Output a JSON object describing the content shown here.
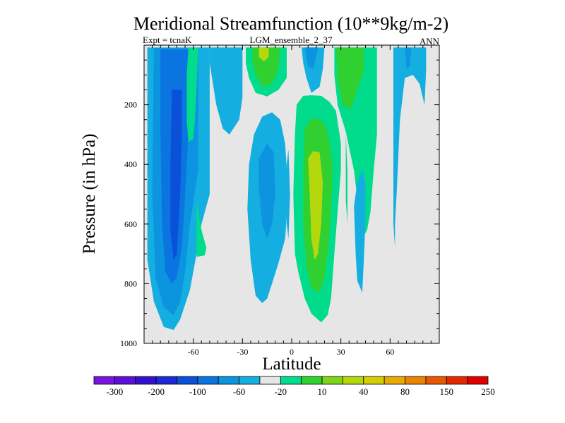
{
  "chart_data": {
    "type": "contour",
    "title": "Meridional Streamfunction (10**9kg/m-2)",
    "left_label": "Expt = tcnaK",
    "center_label": "LGM_ensemble_2_37",
    "right_label": "ANN",
    "xlabel": "Latitude",
    "ylabel": "Pressure (in hPa)",
    "xlim": [
      -90,
      90
    ],
    "ylim": [
      1000,
      0
    ],
    "xticks": [
      -60,
      -30,
      0,
      30,
      60
    ],
    "xtick_labels": [
      "-60",
      "-30",
      "0",
      "30",
      "60"
    ],
    "yticks": [
      200,
      400,
      600,
      800,
      1000
    ],
    "ytick_labels": [
      "200",
      "400",
      "600",
      "800",
      "1000"
    ],
    "background_color": "#e6e6e6",
    "colorbar": {
      "labels": [
        "-300",
        "-200",
        "-100",
        "-60",
        "-20",
        "10",
        "40",
        "80",
        "150",
        "250"
      ],
      "colors": [
        "#7a12e0",
        "#5a10d8",
        "#3210d0",
        "#1d28d6",
        "#0a50d8",
        "#0a74e0",
        "#0c94e0",
        "#14aee0",
        "#e6e6e6",
        "#00dc8c",
        "#30d030",
        "#80d418",
        "#b4d80c",
        "#d4cc04",
        "#e8ac00",
        "#ec8400",
        "#e85800",
        "#e42800",
        "#e00000"
      ]
    },
    "regions": [
      {
        "name": "sh-cell-outer",
        "level": "-20",
        "color": "#14aee0",
        "points": [
          [
            -88,
            8
          ],
          [
            -50,
            8
          ],
          [
            -50,
            500
          ],
          [
            -55,
            600
          ],
          [
            -58,
            700
          ],
          [
            -62,
            820
          ],
          [
            -68,
            920
          ],
          [
            -72,
            955
          ],
          [
            -78,
            945
          ],
          [
            -84,
            860
          ],
          [
            -88,
            720
          ]
        ]
      },
      {
        "name": "sh-cell-mid",
        "level": "-60",
        "color": "#0c94e0",
        "points": [
          [
            -84,
            10
          ],
          [
            -57,
            10
          ],
          [
            -57,
            420
          ],
          [
            -62,
            600
          ],
          [
            -65,
            760
          ],
          [
            -68,
            860
          ],
          [
            -72,
            905
          ],
          [
            -78,
            880
          ],
          [
            -83,
            780
          ],
          [
            -85,
            500
          ]
        ]
      },
      {
        "name": "sh-cell-inner",
        "level": "-100",
        "color": "#0a74e0",
        "points": [
          [
            -80,
            15
          ],
          [
            -62,
            15
          ],
          [
            -63,
            300
          ],
          [
            -65,
            500
          ],
          [
            -67,
            680
          ],
          [
            -70,
            780
          ],
          [
            -73,
            800
          ],
          [
            -77,
            760
          ],
          [
            -79,
            600
          ],
          [
            -80,
            300
          ]
        ]
      },
      {
        "name": "sh-cell-core",
        "level": "-200",
        "color": "#0a50d8",
        "points": [
          [
            -73,
            150
          ],
          [
            -67,
            150
          ],
          [
            -67,
            300
          ],
          [
            -68,
            500
          ],
          [
            -70,
            700
          ],
          [
            -72,
            720
          ],
          [
            -74,
            620
          ],
          [
            -74,
            400
          ]
        ]
      },
      {
        "name": "sh-ferrel-band",
        "level": "10",
        "color": "#00dc8c",
        "points": [
          [
            -63,
            8
          ],
          [
            -57,
            8
          ],
          [
            -58,
            150
          ],
          [
            -59,
            250
          ],
          [
            -60,
            315
          ],
          [
            -63,
            325
          ],
          [
            -64,
            250
          ],
          [
            -64,
            100
          ]
        ]
      },
      {
        "name": "sh-ferrel-low",
        "level": "10",
        "color": "#00dc8c",
        "points": [
          [
            -58,
            525
          ],
          [
            -55,
            620
          ],
          [
            -52,
            680
          ],
          [
            -53,
            705
          ],
          [
            -58,
            710
          ]
        ]
      },
      {
        "name": "sh-upper-cell",
        "level": "-20",
        "color": "#14aee0",
        "points": [
          [
            -50,
            8
          ],
          [
            -30,
            8
          ],
          [
            -30,
            175
          ],
          [
            -32,
            250
          ],
          [
            -38,
            300
          ],
          [
            -42,
            280
          ],
          [
            -46,
            200
          ],
          [
            -50,
            60
          ]
        ]
      },
      {
        "name": "sh-subtropic-band",
        "level": "10",
        "color": "#00dc8c",
        "points": [
          [
            -28,
            8
          ],
          [
            -3,
            8
          ],
          [
            -3,
            110
          ],
          [
            -8,
            150
          ],
          [
            -15,
            172
          ],
          [
            -22,
            160
          ],
          [
            -26,
            110
          ],
          [
            -28,
            60
          ]
        ]
      },
      {
        "name": "sh-subtropic-inner",
        "level": "40",
        "color": "#30d030",
        "points": [
          [
            -24,
            8
          ],
          [
            -7,
            8
          ],
          [
            -8,
            80
          ],
          [
            -12,
            130
          ],
          [
            -18,
            140
          ],
          [
            -22,
            100
          ],
          [
            -24,
            50
          ]
        ]
      },
      {
        "name": "sh-subtropic-core",
        "level": "80",
        "color": "#b4d80c",
        "points": [
          [
            -20,
            8
          ],
          [
            -14,
            8
          ],
          [
            -14,
            40
          ],
          [
            -17,
            55
          ],
          [
            -20,
            40
          ]
        ]
      },
      {
        "name": "sh-hadley",
        "level": "-20",
        "color": "#14aee0",
        "points": [
          [
            -26,
            400
          ],
          [
            -23,
            300
          ],
          [
            -18,
            240
          ],
          [
            -12,
            225
          ],
          [
            -7,
            250
          ],
          [
            -4,
            330
          ],
          [
            -2,
            500
          ],
          [
            -4,
            650
          ],
          [
            -8,
            730
          ],
          [
            -12,
            800
          ],
          [
            -15,
            850
          ],
          [
            -18,
            865
          ],
          [
            -22,
            840
          ],
          [
            -25,
            720
          ],
          [
            -27,
            550
          ]
        ]
      },
      {
        "name": "sh-hadley-inner",
        "level": "-60",
        "color": "#0c94e0",
        "points": [
          [
            -20,
            380
          ],
          [
            -15,
            330
          ],
          [
            -11,
            360
          ],
          [
            -10,
            500
          ],
          [
            -12,
            600
          ],
          [
            -15,
            650
          ],
          [
            -18,
            600
          ],
          [
            -20,
            480
          ]
        ]
      },
      {
        "name": "nh-upper-negative",
        "level": "-20",
        "color": "#14aee0",
        "points": [
          [
            6,
            8
          ],
          [
            20,
            8
          ],
          [
            19,
            80
          ],
          [
            17,
            140
          ],
          [
            12,
            160
          ],
          [
            9,
            110
          ],
          [
            7,
            60
          ]
        ]
      },
      {
        "name": "nh-upper-negative-inner",
        "level": "-60",
        "color": "#0c94e0",
        "points": [
          [
            8,
            8
          ],
          [
            16,
            8
          ],
          [
            15,
            40
          ],
          [
            13,
            80
          ],
          [
            10,
            70
          ],
          [
            9,
            40
          ]
        ]
      },
      {
        "name": "nh-hadley",
        "level": "10",
        "color": "#00dc8c",
        "points": [
          [
            2,
            300
          ],
          [
            3,
            200
          ],
          [
            7,
            170
          ],
          [
            12,
            168
          ],
          [
            18,
            170
          ],
          [
            23,
            190
          ],
          [
            27,
            220
          ],
          [
            30,
            330
          ],
          [
            30,
            420
          ],
          [
            28,
            560
          ],
          [
            26,
            700
          ],
          [
            24,
            850
          ],
          [
            22,
            905
          ],
          [
            18,
            930
          ],
          [
            12,
            900
          ],
          [
            8,
            850
          ],
          [
            4,
            760
          ],
          [
            2,
            700
          ],
          [
            1,
            500
          ]
        ]
      },
      {
        "name": "nh-hadley-inner",
        "level": "40",
        "color": "#30d030",
        "points": [
          [
            8,
            280
          ],
          [
            12,
            245
          ],
          [
            18,
            250
          ],
          [
            22,
            290
          ],
          [
            25,
            400
          ],
          [
            24,
            560
          ],
          [
            22,
            700
          ],
          [
            20,
            780
          ],
          [
            17,
            830
          ],
          [
            12,
            815
          ],
          [
            9,
            740
          ],
          [
            7,
            600
          ],
          [
            7,
            420
          ]
        ]
      },
      {
        "name": "nh-hadley-core",
        "level": "80",
        "color": "#b4d80c",
        "points": [
          [
            10,
            380
          ],
          [
            13,
            355
          ],
          [
            17,
            360
          ],
          [
            19,
            460
          ],
          [
            18,
            600
          ],
          [
            16,
            700
          ],
          [
            14,
            720
          ],
          [
            12,
            650
          ],
          [
            11,
            500
          ]
        ]
      },
      {
        "name": "nh-midlat-band",
        "level": "10",
        "color": "#00dc8c",
        "points": [
          [
            26,
            8
          ],
          [
            52,
            8
          ],
          [
            52,
            300
          ],
          [
            50,
            420
          ],
          [
            48,
            560
          ],
          [
            46,
            620
          ],
          [
            44,
            640
          ],
          [
            41,
            560
          ],
          [
            38,
            420
          ],
          [
            33,
            290
          ],
          [
            28,
            200
          ],
          [
            26,
            100
          ]
        ]
      },
      {
        "name": "nh-midlat-inner",
        "level": "40",
        "color": "#30d030",
        "points": [
          [
            27,
            8
          ],
          [
            44,
            8
          ],
          [
            44,
            90
          ],
          [
            40,
            150
          ],
          [
            36,
            215
          ],
          [
            31,
            200
          ],
          [
            28,
            120
          ]
        ]
      },
      {
        "name": "nh-midlat-sliver",
        "level": "10",
        "color": "#00dc8c",
        "points": [
          [
            33,
            300
          ],
          [
            34,
            420
          ],
          [
            34,
            600
          ],
          [
            33,
            520
          ]
        ]
      },
      {
        "name": "nh-lower-negative",
        "level": "-20",
        "color": "#14aee0",
        "points": [
          [
            38,
            540
          ],
          [
            40,
            460
          ],
          [
            43,
            420
          ],
          [
            45,
            460
          ],
          [
            45,
            580
          ],
          [
            44,
            720
          ],
          [
            43,
            830
          ],
          [
            40,
            790
          ],
          [
            39,
            700
          ]
        ]
      },
      {
        "name": "nh-polar",
        "level": "-20",
        "color": "#14aee0",
        "points": [
          [
            62,
            8
          ],
          [
            82,
            8
          ],
          [
            82,
            80
          ],
          [
            81,
            200
          ],
          [
            78,
            130
          ],
          [
            74,
            100
          ],
          [
            69,
            110
          ],
          [
            66,
            250
          ],
          [
            64,
            500
          ],
          [
            63,
            600
          ],
          [
            63,
            680
          ],
          [
            62,
            600
          ],
          [
            62,
            300
          ]
        ]
      },
      {
        "name": "nh-polar-inner",
        "level": "-60",
        "color": "#0c94e0",
        "points": [
          [
            69,
            8
          ],
          [
            73,
            8
          ],
          [
            72,
            70
          ],
          [
            70,
            80
          ]
        ]
      },
      {
        "name": "eq-sliver",
        "level": "-20",
        "color": "#14aee0",
        "points": [
          [
            -3,
            400
          ],
          [
            -2,
            350
          ],
          [
            -1,
            500
          ],
          [
            -2,
            650
          ],
          [
            -3,
            600
          ]
        ]
      }
    ]
  }
}
